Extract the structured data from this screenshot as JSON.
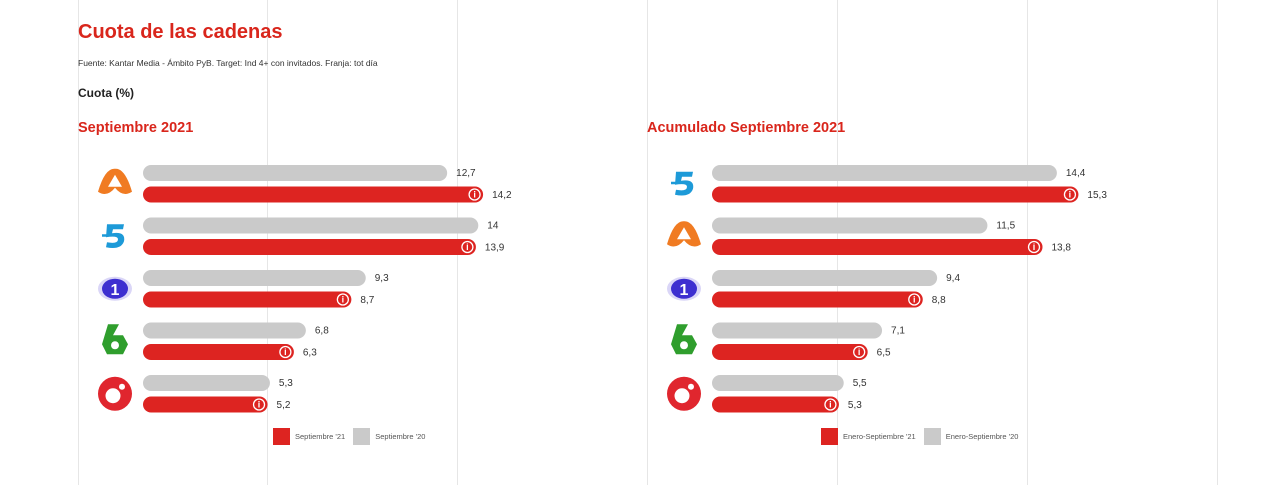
{
  "header": {
    "title": "Cuota de las cadenas",
    "source": "Fuente: Kantar Media - Ámbito PyB. Target: Ind 4+ con invitados. Franja: tot día",
    "metric": "Cuota (%)"
  },
  "colors": {
    "current": "#dd2421",
    "previous": "#cacaca",
    "title": "#d9261c"
  },
  "chart_data": [
    {
      "type": "bar",
      "orientation": "horizontal",
      "title": "Septiembre 2021",
      "categories": [
        "antena3-logo",
        "telecinco-logo",
        "la1-logo",
        "lasexta-logo",
        "cuatro-logo"
      ],
      "series": [
        {
          "name": "Septiembre '20",
          "values": [
            "12,7",
            "14",
            "9,3",
            "6,8",
            "5,3"
          ],
          "color": "#cacaca"
        },
        {
          "name": "Septiembre '21",
          "values": [
            "14,2",
            "13,9",
            "8,7",
            "6,3",
            "5,2"
          ],
          "color": "#dd2421"
        }
      ],
      "legend": [
        "Septiembre '21",
        "Septiembre '20"
      ],
      "legend_position": "bottom"
    },
    {
      "type": "bar",
      "orientation": "horizontal",
      "title": "Acumulado Septiembre 2021",
      "categories": [
        "telecinco-logo",
        "antena3-logo",
        "la1-logo",
        "lasexta-logo",
        "cuatro-logo"
      ],
      "series": [
        {
          "name": "Enero-Septiembre '20",
          "values": [
            "14,4",
            "11,5",
            "9,4",
            "7,1",
            "5,5"
          ],
          "color": "#cacaca"
        },
        {
          "name": "Enero-Septiembre '21",
          "values": [
            "15,3",
            "13,8",
            "8,8",
            "6,5",
            "5,3"
          ],
          "color": "#dd2421"
        }
      ],
      "legend": [
        "Enero-Septiembre '21",
        "Enero-Septiembre '20"
      ],
      "legend_position": "bottom"
    }
  ],
  "info_icon": "i"
}
